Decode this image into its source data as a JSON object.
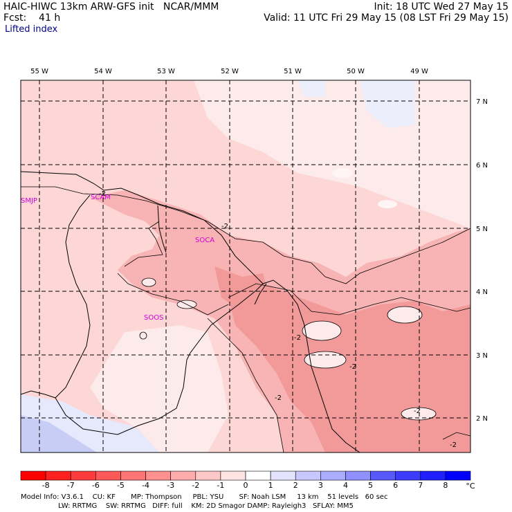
{
  "header": {
    "model_line": "HAIC-HIWC 13km ARW-GFS init   NCAR/MMM",
    "fcst_line": "Fcst:    41 h",
    "field_line": "Lifted index",
    "init_line": "Init: 18 UTC Wed 27 May 15",
    "valid_line": "Valid: 11 UTC Fri 29 May 15 (08 LST Fri 29 May 15)"
  },
  "map": {
    "lon_labels": [
      "55 W",
      "54 W",
      "53 W",
      "52 W",
      "51 W",
      "50 W",
      "49 W"
    ],
    "lat_labels": [
      "7 N",
      "6 N",
      "5 N",
      "4 N",
      "3 N",
      "2 N"
    ],
    "stations": [
      {
        "id": "SMJP"
      },
      {
        "id": "SOCA"
      },
      {
        "id": "SOOS"
      },
      {
        "id": "SCAM"
      }
    ],
    "contour_labels": [
      "-2",
      "-2",
      "-2",
      "-2",
      "-2",
      "-2",
      "-2"
    ],
    "colors": {
      "light_pink": "#fdd6d6",
      "mid_pink": "#f8b4b4",
      "dark_pink": "#f29a9a",
      "white": "#fff5f5",
      "light_blue": "#e6e8fb",
      "blue": "#c8cdf6",
      "station": "#d400d4"
    }
  },
  "colorbar": {
    "ticks": [
      "-8",
      "-7",
      "-6",
      "-5",
      "-4",
      "-3",
      "-2",
      "-1",
      "0",
      "1",
      "2",
      "3",
      "4",
      "5",
      "6",
      "7",
      "8"
    ],
    "unit": "°C",
    "colors": [
      "#ff0000",
      "#ff2020",
      "#ff3c3c",
      "#ff5858",
      "#ff7474",
      "#ff9090",
      "#ffacac",
      "#ffc8c8",
      "#ffe4e4",
      "#ffffff",
      "#e4e4ff",
      "#c8c8ff",
      "#acacff",
      "#9090ff",
      "#5858ff",
      "#3c3cff",
      "#2020ff",
      "#0000ff"
    ]
  },
  "footer": {
    "line1": "Model Info: V3.6.1    CU: KF       MP: Thompson     PBL: YSU       SF: Noah LSM     13 km    51 levels   60 sec",
    "line2": "                 LW: RRTMG    SW: RRTMG   DIFF: full    KM: 2D Smagor DAMP: Rayleigh3   SFLAY: MM5"
  }
}
